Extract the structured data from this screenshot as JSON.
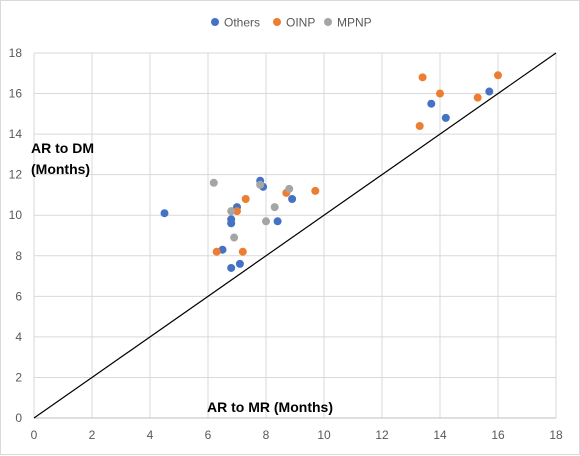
{
  "chart_data": {
    "type": "scatter",
    "xlim": [
      0,
      18
    ],
    "ylim": [
      0,
      18
    ],
    "x_ticks": [
      0,
      2,
      4,
      6,
      8,
      10,
      12,
      14,
      16,
      18
    ],
    "y_ticks": [
      0,
      2,
      4,
      6,
      8,
      10,
      12,
      14,
      16,
      18
    ],
    "grid": true,
    "legend_position": "top",
    "xlabel": "AR to MR (Months)",
    "ylabel_lines": [
      "AR to DM",
      "(Months)"
    ],
    "reference_line": {
      "from": [
        0,
        0
      ],
      "to": [
        18,
        18
      ],
      "color": "#000000"
    },
    "series": [
      {
        "name": "Others",
        "color": "#4472c4",
        "points": [
          [
            4.5,
            10.1
          ],
          [
            6.5,
            8.3
          ],
          [
            6.8,
            9.8
          ],
          [
            6.8,
            9.6
          ],
          [
            6.8,
            7.4
          ],
          [
            7.0,
            10.4
          ],
          [
            7.1,
            7.6
          ],
          [
            7.8,
            11.7
          ],
          [
            7.9,
            11.4
          ],
          [
            8.4,
            9.7
          ],
          [
            8.9,
            10.8
          ],
          [
            13.7,
            15.5
          ],
          [
            14.2,
            14.8
          ],
          [
            15.7,
            16.1
          ]
        ]
      },
      {
        "name": "OINP",
        "color": "#ed7d31",
        "points": [
          [
            6.3,
            8.2
          ],
          [
            7.0,
            10.2
          ],
          [
            7.2,
            8.2
          ],
          [
            7.3,
            10.8
          ],
          [
            8.7,
            11.1
          ],
          [
            9.7,
            11.2
          ],
          [
            13.3,
            14.4
          ],
          [
            13.4,
            16.8
          ],
          [
            14.0,
            16.0
          ],
          [
            15.3,
            15.8
          ],
          [
            16.0,
            16.9
          ]
        ]
      },
      {
        "name": "MPNP",
        "color": "#a5a5a5",
        "points": [
          [
            6.2,
            11.6
          ],
          [
            6.8,
            10.2
          ],
          [
            6.9,
            8.9
          ],
          [
            7.8,
            11.5
          ],
          [
            8.0,
            9.7
          ],
          [
            8.3,
            10.4
          ],
          [
            8.8,
            11.3
          ]
        ]
      }
    ]
  }
}
